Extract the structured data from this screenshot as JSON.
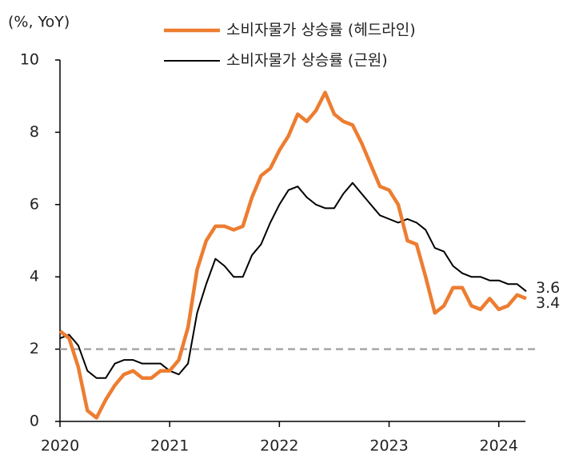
{
  "chart_data": {
    "type": "line",
    "y_label": "(%, YoY)",
    "x": [
      2020,
      2020.083,
      2020.167,
      2020.25,
      2020.333,
      2020.417,
      2020.5,
      2020.583,
      2020.667,
      2020.75,
      2020.833,
      2020.917,
      2021,
      2021.083,
      2021.167,
      2021.25,
      2021.333,
      2021.417,
      2021.5,
      2021.583,
      2021.667,
      2021.75,
      2021.833,
      2021.917,
      2022,
      2022.083,
      2022.167,
      2022.25,
      2022.333,
      2022.417,
      2022.5,
      2022.583,
      2022.667,
      2022.75,
      2022.833,
      2022.917,
      2023,
      2023.083,
      2023.167,
      2023.25,
      2023.333,
      2023.417,
      2023.5,
      2023.583,
      2023.667,
      2023.75,
      2023.833,
      2023.917,
      2024,
      2024.083,
      2024.167,
      2024.25
    ],
    "series": [
      {
        "name": "소비자물가 상승률 (헤드라인)",
        "color": "#ed7d31",
        "width": 4.5,
        "values": [
          2.5,
          2.3,
          1.5,
          0.3,
          0.1,
          0.6,
          1.0,
          1.3,
          1.4,
          1.2,
          1.2,
          1.4,
          1.4,
          1.7,
          2.6,
          4.2,
          5.0,
          5.4,
          5.4,
          5.3,
          5.4,
          6.2,
          6.8,
          7.0,
          7.5,
          7.9,
          8.5,
          8.3,
          8.6,
          9.1,
          8.5,
          8.3,
          8.2,
          7.7,
          7.1,
          6.5,
          6.4,
          6.0,
          5.0,
          4.9,
          4.0,
          3.0,
          3.2,
          3.7,
          3.7,
          3.2,
          3.1,
          3.4,
          3.1,
          3.2,
          3.5,
          3.4
        ]
      },
      {
        "name": "소비자물가 상승률 (근원)",
        "color": "#000000",
        "width": 2,
        "values": [
          2.3,
          2.4,
          2.1,
          1.4,
          1.2,
          1.2,
          1.6,
          1.7,
          1.7,
          1.6,
          1.6,
          1.6,
          1.4,
          1.3,
          1.6,
          3.0,
          3.8,
          4.5,
          4.3,
          4.0,
          4.0,
          4.6,
          4.9,
          5.5,
          6.0,
          6.4,
          6.5,
          6.2,
          6.0,
          5.9,
          5.9,
          6.3,
          6.6,
          6.3,
          6.0,
          5.7,
          5.6,
          5.5,
          5.6,
          5.5,
          5.3,
          4.8,
          4.7,
          4.3,
          4.1,
          4.0,
          4.0,
          3.9,
          3.9,
          3.8,
          3.8,
          3.6
        ]
      }
    ],
    "reference_line": 2,
    "xlim": [
      2020,
      2024.33
    ],
    "xticks": [
      2020,
      2021,
      2022,
      2023,
      2024
    ],
    "ylim": [
      0,
      10
    ],
    "yticks": [
      0,
      2,
      4,
      6,
      8,
      10
    ],
    "grid": false
  }
}
